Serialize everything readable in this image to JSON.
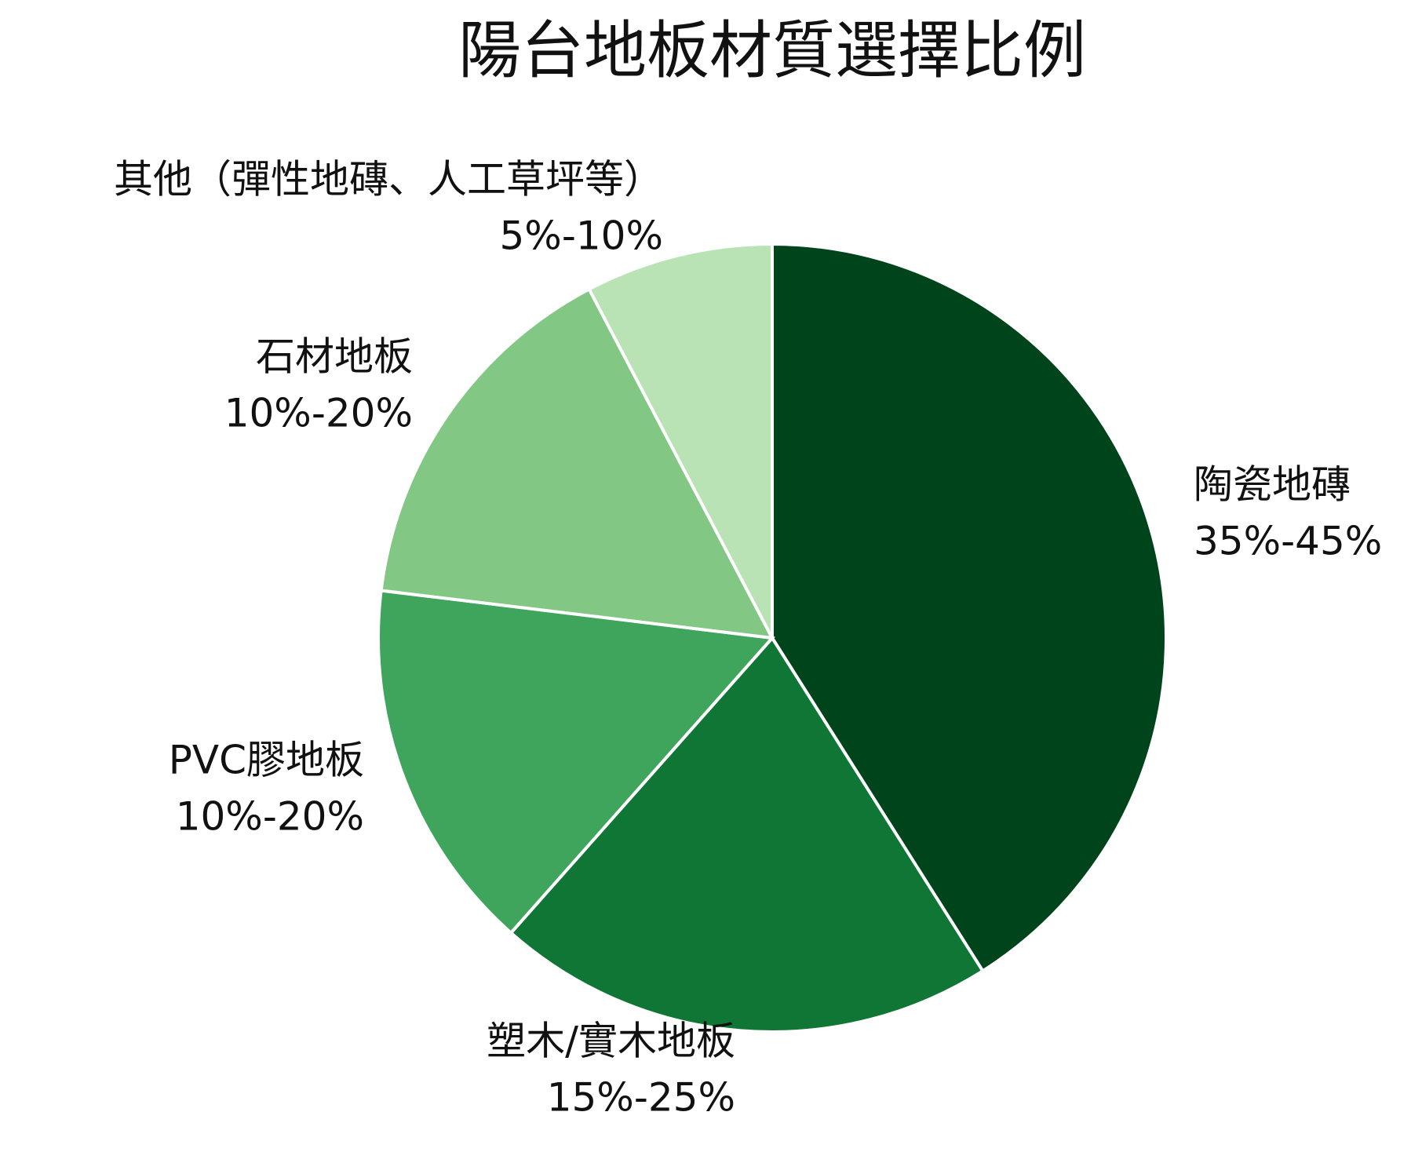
{
  "chart_data": {
    "type": "pie",
    "title": "陽台地板材質選擇比例",
    "categories": [
      "陶瓷地磚",
      "塑木/實木地板",
      "PVC膠地板",
      "石材地板",
      "其他（彈性地磚、人工草坪等）"
    ],
    "values": [
      40,
      20,
      15,
      15,
      7.5
    ],
    "value_labels": [
      "35%-45%",
      "15%-25%",
      "10%-20%",
      "10%-20%",
      "5%-10%"
    ],
    "colors": [
      "#00441b",
      "#107636",
      "#3fa45c",
      "#82c784",
      "#b9e3b4"
    ]
  }
}
